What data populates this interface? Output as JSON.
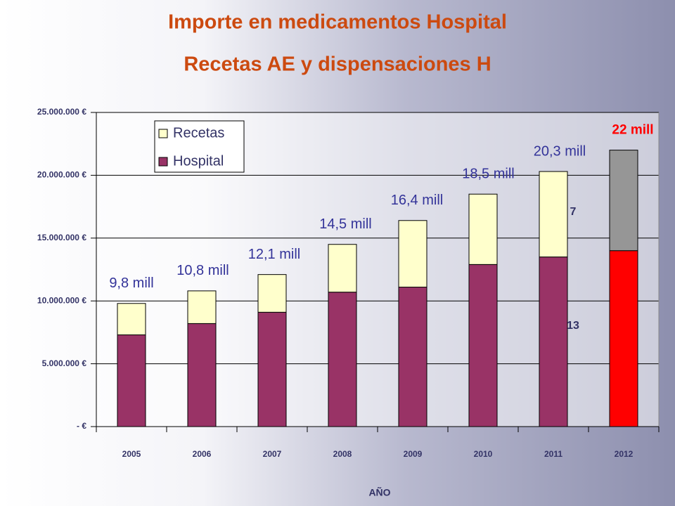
{
  "chart_data": {
    "type": "stacked_bar",
    "title": "Importe en medicamentos Hospital",
    "subtitle": "Recetas AE y dispensaciones H",
    "x_label": "AÑO",
    "categories": [
      "2005",
      "2006",
      "2007",
      "2008",
      "2009",
      "2010",
      "2011",
      "2012"
    ],
    "series": [
      {
        "name": "Hospital",
        "color": "#993366",
        "colors": [
          "#993366",
          "#993366",
          "#993366",
          "#993366",
          "#993366",
          "#993366",
          "#993366",
          "#ff0000"
        ],
        "values": [
          7300000,
          8200000,
          9100000,
          10700000,
          11100000,
          12900000,
          13500000,
          14000000
        ]
      },
      {
        "name": "Recetas",
        "color": "#ffffcc",
        "colors": [
          "#ffffcc",
          "#ffffcc",
          "#ffffcc",
          "#ffffcc",
          "#ffffcc",
          "#ffffcc",
          "#ffffcc",
          "#969696"
        ],
        "values": [
          2500000,
          2600000,
          3000000,
          3800000,
          5300000,
          5600000,
          6800000,
          8000000
        ]
      }
    ],
    "total_labels": [
      "9,8 mill",
      "10,8 mill",
      "12,1 mill",
      "14,5 mill",
      "16,4 mill",
      "18,5 mill",
      "20,3 mill",
      "22 mill"
    ],
    "annotations": [
      "13",
      "7"
    ],
    "ylim": [
      0,
      25000000
    ],
    "yticks": [
      {
        "value": 0,
        "label": "- €"
      },
      {
        "value": 5000000,
        "label": "5.000.000 €"
      },
      {
        "value": 10000000,
        "label": "10.000.000 €"
      },
      {
        "value": 15000000,
        "label": "15.000.000 €"
      },
      {
        "value": 20000000,
        "label": "20.000.000 €"
      },
      {
        "value": 25000000,
        "label": "25.000.000 €"
      }
    ],
    "grid": true,
    "legend": "top-left"
  }
}
